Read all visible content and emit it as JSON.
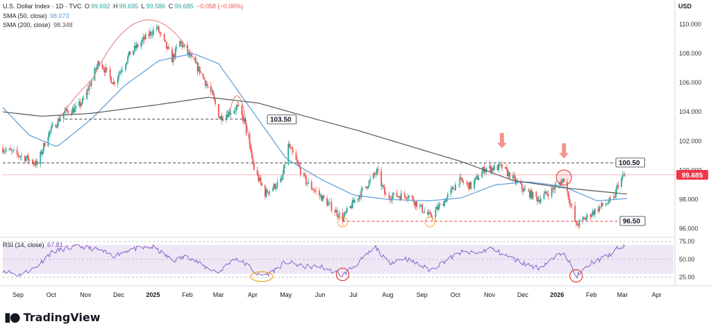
{
  "header": {
    "title": "U.S. Dollar Index · 1D · TVC",
    "ohlc": {
      "o_label": "O",
      "o": "99.692",
      "h_label": "H",
      "h": "99.695",
      "l_label": "L",
      "l": "99.586",
      "c_label": "C",
      "c": "99.685",
      "change": "−0.058 (−0.06%)"
    },
    "sma50_label": "SMA (50, close)",
    "sma50_value": "98.073",
    "sma200_label": "SMA (200, close)",
    "sma200_value": "98.348",
    "rsi_label": "RSI (14, close)",
    "rsi_value": "67.81"
  },
  "currency": "USD",
  "branding": {
    "name": "TradingView"
  },
  "colors": {
    "up": "#26a69a",
    "down": "#ef5350",
    "sma50": "#5b9bd5",
    "sma200": "#555555",
    "rsi": "#7e57c2",
    "rsi_band": "#ede7f6",
    "price_tag": "#f23645",
    "orange_marker": "#f5a623",
    "red_marker": "#e53935"
  },
  "chart_data": [
    {
      "type": "candlestick",
      "title": "U.S. Dollar Index",
      "xlabel": "",
      "ylabel": "USD",
      "ylim": [
        95.5,
        111
      ],
      "y_ticks": [
        "110.000",
        "108.000",
        "106.000",
        "104.000",
        "102.000",
        "100.000",
        "98.000",
        "96.000"
      ],
      "x_ticks": [
        "Sep",
        "Oct",
        "Nov",
        "Dec",
        "2025",
        "Feb",
        "Mar",
        "Apr",
        "May",
        "Jun",
        "Jul",
        "Aug",
        "Sep",
        "Oct",
        "Nov",
        "Dec",
        "2026",
        "Feb",
        "Mar",
        "Apr"
      ],
      "path_anchors": [
        [
          "2024-08-27",
          101.5
        ],
        [
          "2024-09-05",
          101.2
        ],
        [
          "2024-09-18",
          100.8
        ],
        [
          "2024-09-27",
          100.4
        ],
        [
          "2024-10-07",
          102.5
        ],
        [
          "2024-10-22",
          104.0
        ],
        [
          "2024-11-01",
          104.2
        ],
        [
          "2024-11-08",
          104.8
        ],
        [
          "2024-11-22",
          107.5
        ],
        [
          "2024-12-05",
          106.0
        ],
        [
          "2024-12-20",
          108.0
        ],
        [
          "2025-01-02",
          109.0
        ],
        [
          "2025-01-13",
          109.8
        ],
        [
          "2025-01-27",
          107.6
        ],
        [
          "2025-02-03",
          108.8
        ],
        [
          "2025-02-20",
          106.9
        ],
        [
          "2025-03-04",
          105.2
        ],
        [
          "2025-03-11",
          103.6
        ],
        [
          "2025-03-27",
          104.3
        ],
        [
          "2025-04-02",
          103.4
        ],
        [
          "2025-04-11",
          100.1
        ],
        [
          "2025-04-21",
          98.4
        ],
        [
          "2025-05-06",
          99.3
        ],
        [
          "2025-05-12",
          101.7
        ],
        [
          "2025-05-28",
          99.2
        ],
        [
          "2025-06-13",
          98.0
        ],
        [
          "2025-06-30",
          96.7
        ],
        [
          "2025-07-10",
          97.8
        ],
        [
          "2025-07-31",
          99.9
        ],
        [
          "2025-08-08",
          98.2
        ],
        [
          "2025-08-28",
          98.3
        ],
        [
          "2025-09-17",
          96.8
        ],
        [
          "2025-09-30",
          97.9
        ],
        [
          "2025-10-13",
          99.3
        ],
        [
          "2025-10-24",
          98.9
        ],
        [
          "2025-11-05",
          100.1
        ],
        [
          "2025-11-21",
          100.2
        ],
        [
          "2025-12-10",
          98.7
        ],
        [
          "2025-12-24",
          98.0
        ],
        [
          "2026-01-06",
          98.7
        ],
        [
          "2026-01-16",
          99.4
        ],
        [
          "2026-01-27",
          96.2
        ],
        [
          "2026-02-09",
          97.0
        ],
        [
          "2026-02-20",
          97.6
        ],
        [
          "2026-03-02",
          98.0
        ],
        [
          "2026-03-06",
          99.1
        ],
        [
          "2026-03-12",
          99.685
        ]
      ],
      "last_price": "99.685",
      "levels": [
        {
          "label": "103.50",
          "value": 103.5,
          "style": "dashed",
          "color": "#444444",
          "start": "2024-10-22",
          "end": "2025-04-02"
        },
        {
          "label": "100.50",
          "value": 100.5,
          "style": "dashed",
          "color": "#444444",
          "start": "2024-08-27",
          "end": "2026-03-16"
        },
        {
          "label": "96.50",
          "value": 96.5,
          "style": "dashed",
          "color": "#e53935",
          "start": "2025-06-30",
          "end": "2026-03-16"
        }
      ],
      "series": [
        {
          "name": "SMA (50, close)",
          "anchors": [
            [
              "2024-08-27",
              104.3
            ],
            [
              "2024-09-20",
              102.4
            ],
            [
              "2024-10-15",
              101.6
            ],
            [
              "2024-11-15",
              103.5
            ],
            [
              "2024-12-15",
              105.8
            ],
            [
              "2025-01-15",
              107.5
            ],
            [
              "2025-02-15",
              108.0
            ],
            [
              "2025-03-10",
              107.3
            ],
            [
              "2025-04-10",
              104.0
            ],
            [
              "2025-05-10",
              100.8
            ],
            [
              "2025-06-10",
              99.4
            ],
            [
              "2025-07-10",
              98.3
            ],
            [
              "2025-08-10",
              98.0
            ],
            [
              "2025-09-15",
              97.9
            ],
            [
              "2025-10-15",
              98.1
            ],
            [
              "2025-11-15",
              99.0
            ],
            [
              "2025-12-15",
              99.2
            ],
            [
              "2026-01-15",
              98.9
            ],
            [
              "2026-02-15",
              97.9
            ],
            [
              "2026-03-16",
              98.073
            ]
          ]
        },
        {
          "name": "SMA (200, close)",
          "anchors": [
            [
              "2024-08-27",
              104.0
            ],
            [
              "2024-10-01",
              103.7
            ],
            [
              "2024-11-15",
              103.9
            ],
            [
              "2025-01-15",
              104.5
            ],
            [
              "2025-03-01",
              105.0
            ],
            [
              "2025-04-15",
              104.6
            ],
            [
              "2025-06-01",
              103.6
            ],
            [
              "2025-07-15",
              102.7
            ],
            [
              "2025-09-01",
              101.6
            ],
            [
              "2025-10-15",
              100.6
            ],
            [
              "2025-12-01",
              99.3
            ],
            [
              "2026-01-15",
              98.8
            ],
            [
              "2026-03-16",
              98.348
            ]
          ]
        }
      ],
      "annotations": [
        {
          "type": "arrow-down",
          "date": "2025-11-21",
          "value": 101.5
        },
        {
          "type": "arrow-down",
          "date": "2026-01-16",
          "value": 100.8
        },
        {
          "type": "circle",
          "date": "2026-01-16",
          "value": 99.5,
          "color": "#e53935"
        },
        {
          "type": "circle",
          "date": "2025-06-30",
          "value": 96.45,
          "color": "#f5a623"
        },
        {
          "type": "circle",
          "date": "2025-09-17",
          "value": 96.45,
          "color": "#f5a623"
        },
        {
          "type": "arc",
          "start": "2024-10-15",
          "end": "2024-11-15",
          "peak": 104.9
        },
        {
          "type": "arc",
          "start": "2024-11-10",
          "end": "2025-03-01",
          "peak": 110.3
        },
        {
          "type": "arc",
          "start": "2025-03-20",
          "end": "2025-04-08",
          "peak": 104.9
        }
      ]
    },
    {
      "type": "line",
      "title": "RSI (14, close)",
      "xlabel": "",
      "ylabel": "",
      "ylim": [
        15,
        78
      ],
      "y_ticks": [
        "75.00",
        "50.00",
        "25.00"
      ],
      "band": [
        30,
        70
      ],
      "anchors": [
        [
          "2024-08-27",
          35
        ],
        [
          "2024-09-10",
          28
        ],
        [
          "2024-09-25",
          38
        ],
        [
          "2024-10-10",
          60
        ],
        [
          "2024-10-25",
          66
        ],
        [
          "2024-11-05",
          68
        ],
        [
          "2024-11-20",
          64
        ],
        [
          "2024-12-05",
          55
        ],
        [
          "2024-12-20",
          64
        ],
        [
          "2025-01-10",
          67
        ],
        [
          "2025-01-28",
          48
        ],
        [
          "2025-02-10",
          55
        ],
        [
          "2025-02-25",
          40
        ],
        [
          "2025-03-10",
          32
        ],
        [
          "2025-03-25",
          52
        ],
        [
          "2025-04-05",
          42
        ],
        [
          "2025-04-15",
          28
        ],
        [
          "2025-04-25",
          30
        ],
        [
          "2025-05-10",
          47
        ],
        [
          "2025-05-25",
          40
        ],
        [
          "2025-06-10",
          40
        ],
        [
          "2025-06-30",
          28
        ],
        [
          "2025-07-10",
          40
        ],
        [
          "2025-07-30",
          67
        ],
        [
          "2025-08-10",
          45
        ],
        [
          "2025-08-25",
          52
        ],
        [
          "2025-09-17",
          35
        ],
        [
          "2025-10-01",
          48
        ],
        [
          "2025-10-15",
          60
        ],
        [
          "2025-10-30",
          58
        ],
        [
          "2025-11-10",
          66
        ],
        [
          "2025-11-25",
          55
        ],
        [
          "2025-12-10",
          45
        ],
        [
          "2025-12-24",
          38
        ],
        [
          "2026-01-08",
          52
        ],
        [
          "2026-01-16",
          62
        ],
        [
          "2026-01-27",
          26
        ],
        [
          "2026-02-10",
          45
        ],
        [
          "2026-02-25",
          55
        ],
        [
          "2026-03-06",
          66
        ],
        [
          "2026-03-12",
          67.81
        ]
      ],
      "annotations": [
        {
          "type": "ellipse",
          "date": "2025-04-18",
          "value": 26,
          "color": "#f5a623"
        },
        {
          "type": "circle",
          "date": "2025-06-30",
          "value": 29,
          "color": "#e53935"
        },
        {
          "type": "circle",
          "date": "2026-01-27",
          "value": 27,
          "color": "#e53935"
        }
      ]
    }
  ]
}
